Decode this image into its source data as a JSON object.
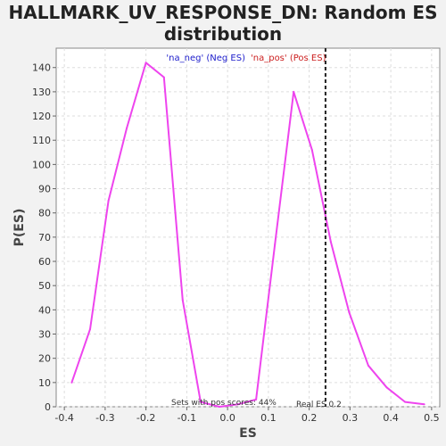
{
  "chart_data": {
    "type": "line",
    "title_lines": [
      "HALLMARK_UV_RESPONSE_DN: Random ES",
      "distribution"
    ],
    "xlabel": "ES",
    "ylabel": "P(ES)",
    "xlim": [
      -0.42,
      0.52
    ],
    "ylim": [
      0,
      148
    ],
    "x_ticks": [
      -0.4,
      -0.3,
      -0.2,
      -0.1,
      0.0,
      0.1,
      0.2,
      0.3,
      0.4,
      0.5
    ],
    "x_tick_labels": [
      "-0.4",
      "-0.3",
      "-0.2",
      "-0.1",
      "0.0",
      "0.1",
      "0.2",
      "0.3",
      "0.4",
      "0.5"
    ],
    "y_ticks": [
      0,
      10,
      20,
      30,
      40,
      50,
      60,
      70,
      80,
      90,
      100,
      110,
      120,
      130,
      140
    ],
    "y_tick_labels": [
      "0",
      "10",
      "20",
      "30",
      "40",
      "50",
      "60",
      "70",
      "80",
      "90",
      "100",
      "110",
      "120",
      "130",
      "140"
    ],
    "grid": true,
    "legend": {
      "placement": "top-center",
      "neg_label": "'na_neg' (Neg ES)",
      "pos_label": "'na_pos' (Pos ES)",
      "neg_color": "#2020cc",
      "pos_color": "#cc2020"
    },
    "series": [
      {
        "color": "#ee44ee",
        "x": [
          -0.382,
          -0.337,
          -0.292,
          -0.247,
          -0.2,
          -0.156,
          -0.11,
          -0.066,
          -0.02,
          0.025,
          0.07,
          0.116,
          0.162,
          0.207,
          0.253,
          0.298,
          0.345,
          0.39,
          0.435,
          0.482
        ],
        "y": [
          10,
          32,
          85,
          115,
          142,
          136,
          44,
          2,
          0,
          1,
          3,
          67,
          130,
          106,
          68,
          39,
          17,
          8,
          2,
          1
        ]
      }
    ],
    "real_es": {
      "value": 0.24,
      "label": "Real ES 0.2",
      "color": "#222222"
    },
    "annotation": "Sets with pos scores: 44%"
  }
}
